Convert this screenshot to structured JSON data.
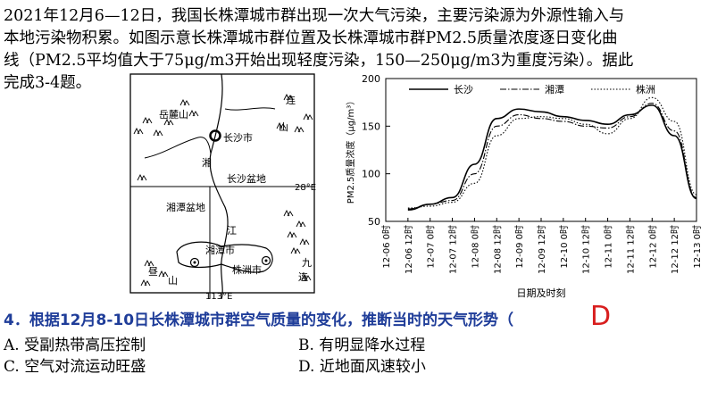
{
  "intro": {
    "line1": "2021年12月6—12日，我国长株潭城市群出现一次大气污染，主要污染源为外源性输入与",
    "line2": "本地污染物积累。如图示意长株潭城市群位置及长株潭城市群PM2.5质量浓度逐日变化曲",
    "line3": "线（PM2.5平均值大于75μg/m3开始出现轻度污染，150—250μg/m3为重度污染）。据此",
    "line4": "完成3-4题。"
  },
  "map": {
    "labels": {
      "yuelu": "岳麓山",
      "lian": "连",
      "shan_lian": "山",
      "changsha": "长沙市",
      "xiang": "湘",
      "basin_changsha": "长沙盆地",
      "lat": "28°E",
      "basin_xiangtan": "湘潭盆地",
      "jiang": "江",
      "xiangtan": "湘潭市",
      "zhuzhou": "株洲市",
      "zhou": "昼",
      "shan_zhou": "山",
      "jiu": "九",
      "lian2": "连",
      "lon": "113°E"
    }
  },
  "chart_data": {
    "type": "line",
    "ylabel": "PM2.5质量浓度（μg/m³）",
    "xlabel": "日期及时刻",
    "ylim": [
      50,
      200
    ],
    "yticks": [
      50,
      100,
      150,
      200
    ],
    "categories": [
      "12-06 0时",
      "12-06 12时",
      "12-07 0时",
      "12-07 12时",
      "12-08 0时",
      "12-08 12时",
      "12-09 0时",
      "12-09 12时",
      "12-10 0时",
      "12-10 12时",
      "12-11 0时",
      "12-11 12时",
      "12-12 0时",
      "12-12 12时",
      "12-13 0时"
    ],
    "series": [
      {
        "name": "长沙",
        "style": "solid",
        "values": [
          null,
          62,
          68,
          75,
          110,
          158,
          168,
          165,
          160,
          156,
          152,
          162,
          172,
          140,
          74
        ]
      },
      {
        "name": "湘潭",
        "style": "dashdot",
        "values": [
          null,
          63,
          68,
          72,
          100,
          150,
          162,
          158,
          155,
          150,
          148,
          160,
          174,
          145,
          75
        ]
      },
      {
        "name": "株洲",
        "style": "dotted",
        "values": [
          null,
          64,
          66,
          70,
          90,
          140,
          158,
          160,
          158,
          152,
          142,
          158,
          180,
          155,
          78
        ]
      }
    ]
  },
  "question": {
    "number": "4",
    "text": "4．根据12月8-10日长株潭城市群空气质量的变化，推断当时的天气形势（",
    "answer": "D",
    "options": [
      {
        "label": "A.  受副热带高压控制"
      },
      {
        "label": "B.  有明显降水过程"
      },
      {
        "label": "C.  空气对流运动旺盛"
      },
      {
        "label": "D.  近地面风速较小"
      }
    ]
  }
}
